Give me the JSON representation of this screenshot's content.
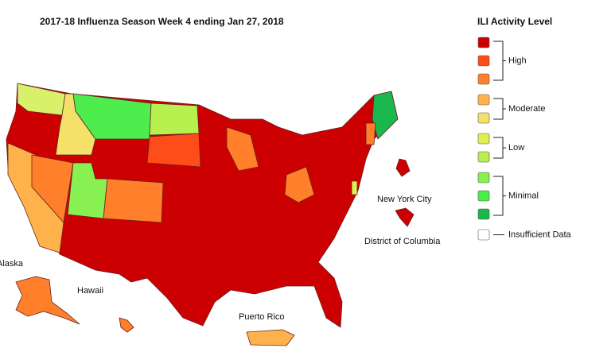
{
  "title": "2017-18 Influenza Season Week 4 ending Jan 27, 2018",
  "legend": {
    "title": "ILI Activity Level",
    "groups": [
      {
        "label": "High",
        "colors": [
          "#cc0000",
          "#ff4d1a",
          "#ff7f2a"
        ]
      },
      {
        "label": "Moderate",
        "colors": [
          "#ffb24c",
          "#f5e06a"
        ]
      },
      {
        "label": "Low",
        "colors": [
          "#e0f050",
          "#b8f050"
        ]
      },
      {
        "label": "Minimal",
        "colors": [
          "#88f050",
          "#4ced4c",
          "#19b84c"
        ]
      },
      {
        "label": "Insufficient Data",
        "colors": [
          "#ffffff"
        ]
      }
    ]
  },
  "map_labels": {
    "alaska": "Alaska",
    "hawaii": "Hawaii",
    "puerto_rico": "Puerto Rico",
    "nyc": "New York City",
    "dc": "District of Columbia"
  }
}
